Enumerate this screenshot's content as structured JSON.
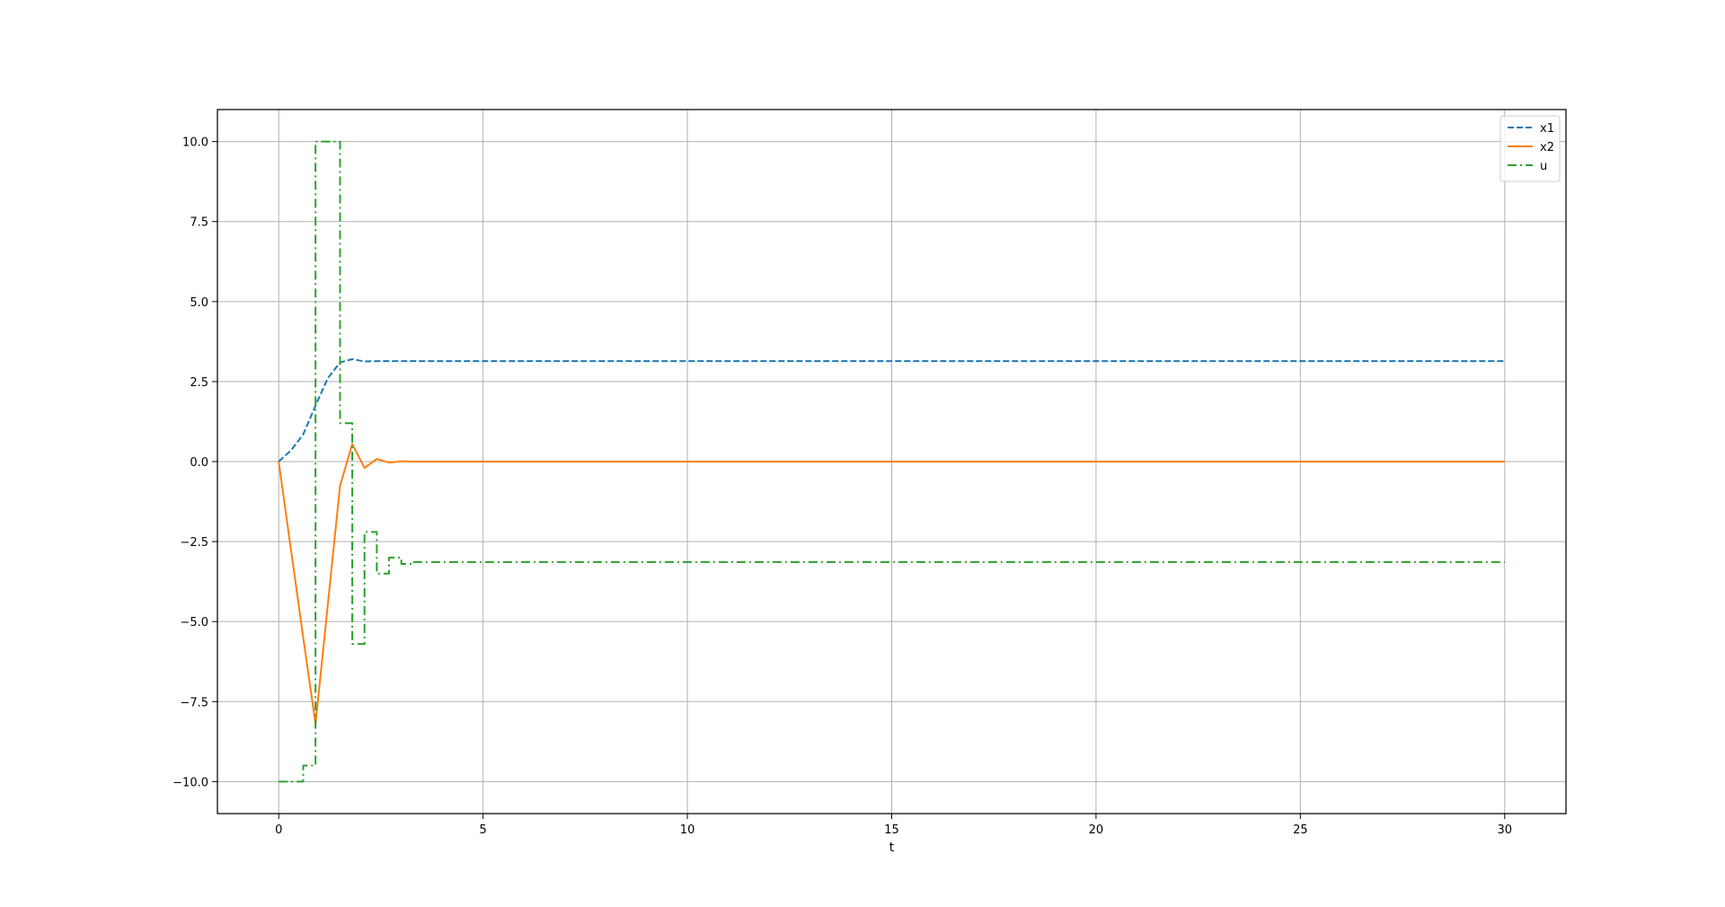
{
  "chart_data": {
    "type": "line",
    "title": "",
    "xlabel": "t",
    "ylabel": "",
    "xlim": [
      -1.5,
      31.5
    ],
    "ylim": [
      -11.0,
      11.0
    ],
    "xticks": [
      0,
      5,
      10,
      15,
      20,
      25,
      30
    ],
    "xtick_labels": [
      "0",
      "5",
      "10",
      "15",
      "20",
      "25",
      "30"
    ],
    "yticks": [
      -10.0,
      -7.5,
      -5.0,
      -2.5,
      0.0,
      2.5,
      5.0,
      7.5,
      10.0
    ],
    "ytick_labels": [
      "−10.0",
      "−7.5",
      "−5.0",
      "−2.5",
      "0.0",
      "2.5",
      "5.0",
      "7.5",
      "10.0"
    ],
    "grid": true,
    "legend_position": "top-right",
    "series": [
      {
        "name": "x1",
        "style": "dashed",
        "color": "#1f77b4",
        "x": [
          0,
          0.3,
          0.6,
          0.9,
          1.2,
          1.5,
          1.8,
          2.1,
          2.4,
          2.7,
          3.0,
          3.3,
          3.6,
          30
        ],
        "y": [
          0,
          0.35,
          0.85,
          1.75,
          2.6,
          3.1,
          3.2,
          3.13,
          3.14,
          3.14,
          3.14,
          3.14,
          3.14,
          3.14
        ]
      },
      {
        "name": "x2",
        "style": "solid",
        "color": "#ff7f0e",
        "x": [
          0,
          0.6,
          0.9,
          1.5,
          1.8,
          2.1,
          2.4,
          2.7,
          3.0,
          3.3,
          30
        ],
        "y": [
          0,
          -5.5,
          -8.2,
          -0.75,
          0.55,
          -0.2,
          0.08,
          -0.03,
          0.01,
          0.0,
          0.0
        ]
      },
      {
        "name": "u",
        "style": "dashdot",
        "step": "post",
        "color": "#2ca02c",
        "x": [
          0,
          0.6,
          0.9,
          1.5,
          1.8,
          2.1,
          2.4,
          2.7,
          3.0,
          3.3,
          30
        ],
        "y": [
          -10.0,
          -9.5,
          10.0,
          1.2,
          -5.7,
          -2.2,
          -3.5,
          -3.0,
          -3.2,
          -3.14,
          -3.14
        ]
      }
    ]
  }
}
